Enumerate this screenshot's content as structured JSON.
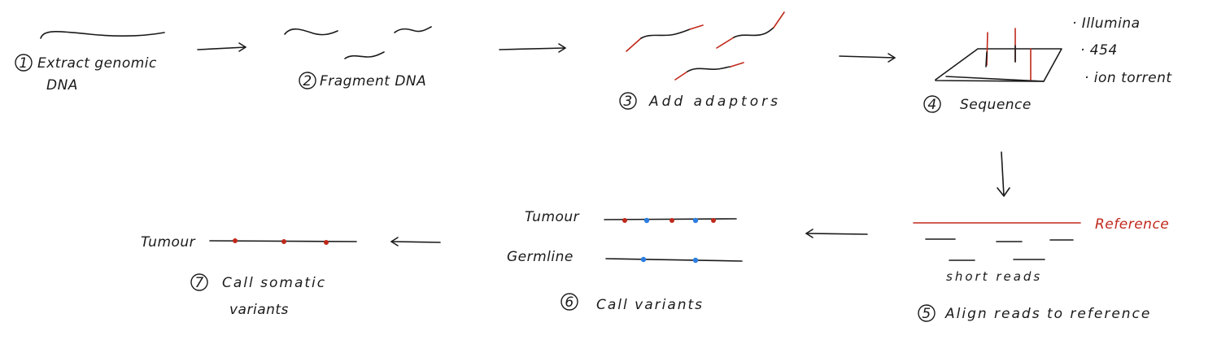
{
  "colors": {
    "ink": "#1a1a1a",
    "red": "#c0281b",
    "blue": "#2b7de0"
  },
  "steps": {
    "s1": {
      "num": "1",
      "line1": "Extract genomic",
      "line2": "DNA"
    },
    "s2": {
      "num": "2",
      "label": "Fragment DNA"
    },
    "s3": {
      "num": "3",
      "label": "Add adaptors"
    },
    "s4": {
      "num": "4",
      "label": "Sequence"
    },
    "s5": {
      "num": "5",
      "label": "Align reads to reference"
    },
    "s6": {
      "num": "6",
      "label": "Call variants"
    },
    "s7": {
      "num": "7",
      "line1": "Call somatic",
      "line2": "variants"
    }
  },
  "platforms": [
    "· Illumina",
    "· 454",
    "· ion torrent"
  ],
  "alignment": {
    "reference_label": "Reference",
    "reads_label": "short reads"
  },
  "variant_calling": {
    "tumour_label": "Tumour",
    "germline_label": "Germline"
  },
  "somatic": {
    "tumour_label": "Tumour"
  }
}
